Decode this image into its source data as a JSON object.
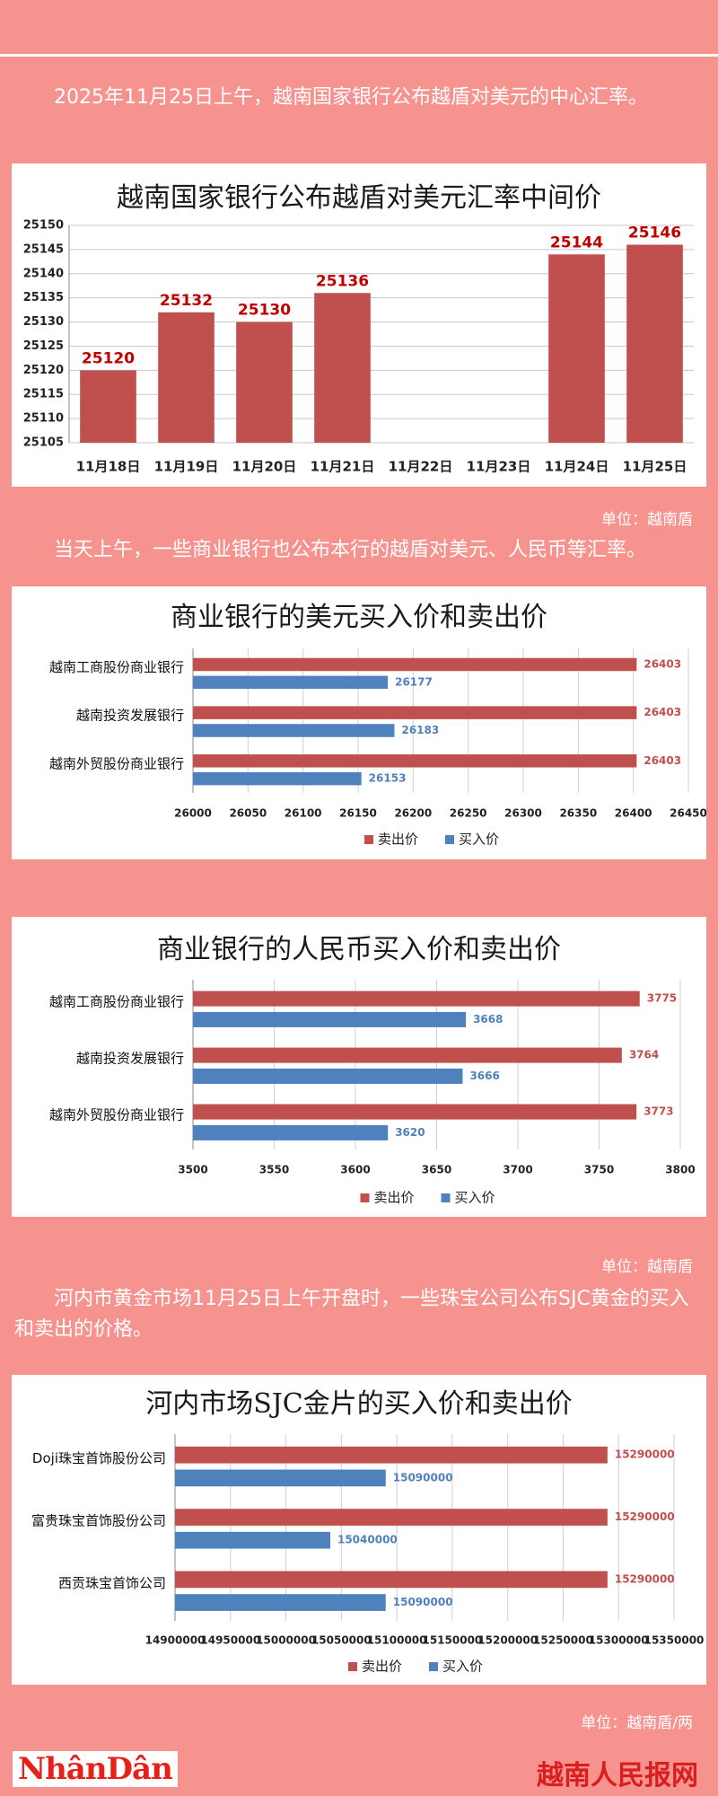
{
  "paragraphs": [
    "2025年11月25日上午，越南国家银行公布越盾对美元的中心汇率。",
    "当天上午，一些商业银行也公布本行的越盾对美元、人民币等汇率。",
    "河内市黄金市场11月25日上午开盘时，一些珠宝公司公布SJC黄金的买入和卖出的价格。"
  ],
  "units": [
    "单位：越南盾",
    "单位：越南盾",
    "单位：越南盾/两"
  ],
  "footer": {
    "logo": "NhânDân",
    "site": "越南人民报网"
  },
  "chart_data": [
    {
      "type": "bar",
      "title": "越南国家银行公布越盾对美元汇率中间价",
      "categories": [
        "11月18日",
        "11月19日",
        "11月20日",
        "11月21日",
        "11月22日",
        "11月23日",
        "11月24日",
        "11月25日"
      ],
      "values": [
        25120,
        25132,
        25130,
        25136,
        null,
        null,
        25144,
        25146
      ],
      "color": "#c0504d",
      "label_color": "#c00000",
      "ylim": [
        25105,
        25150
      ],
      "yticks": [
        25105,
        25110,
        25115,
        25120,
        25125,
        25130,
        25135,
        25140,
        25145,
        25150
      ],
      "grid": true
    },
    {
      "type": "hbar",
      "title": "商业银行的美元买入价和卖出价",
      "categories": [
        "越南工商股份商业银行",
        "越南投资发展银行",
        "越南外贸股份商业银行"
      ],
      "series": [
        {
          "name": "卖出价",
          "color": "#c0504d",
          "values": [
            26403,
            26403,
            26403
          ]
        },
        {
          "name": "买入价",
          "color": "#4f81bd",
          "values": [
            26177,
            26183,
            26153
          ]
        }
      ],
      "xlim": [
        26000,
        26450
      ],
      "xticks": [
        26000,
        26050,
        26100,
        26150,
        26200,
        26250,
        26300,
        26350,
        26400,
        26450
      ],
      "grid": true,
      "legend": "bottom"
    },
    {
      "type": "hbar",
      "title": "商业银行的人民币买入价和卖出价",
      "categories": [
        "越南工商股份商业银行",
        "越南投资发展银行",
        "越南外贸股份商业银行"
      ],
      "series": [
        {
          "name": "卖出价",
          "color": "#c0504d",
          "values": [
            3775,
            3764,
            3773
          ]
        },
        {
          "name": "买入价",
          "color": "#4f81bd",
          "values": [
            3668,
            3666,
            3620
          ]
        }
      ],
      "xlim": [
        3500,
        3800
      ],
      "xticks": [
        3500,
        3550,
        3600,
        3650,
        3700,
        3750,
        3800
      ],
      "grid": true,
      "legend": "bottom"
    },
    {
      "type": "hbar",
      "title": "河内市场SJC金片的买入价和卖出价",
      "categories": [
        "Doji珠宝首饰股份公司",
        "富贵珠宝首饰股份公司",
        "西贡珠宝首饰公司"
      ],
      "series": [
        {
          "name": "卖出价",
          "color": "#c0504d",
          "values": [
            15290000,
            15290000,
            15290000
          ]
        },
        {
          "name": "买入价",
          "color": "#4f81bd",
          "values": [
            15090000,
            15040000,
            15090000
          ]
        }
      ],
      "xlim": [
        14900000,
        15350000
      ],
      "xticks": [
        14900000,
        14950000,
        15000000,
        15050000,
        15100000,
        15150000,
        15200000,
        15250000,
        15300000,
        15350000
      ],
      "grid": true,
      "legend": "bottom"
    }
  ]
}
